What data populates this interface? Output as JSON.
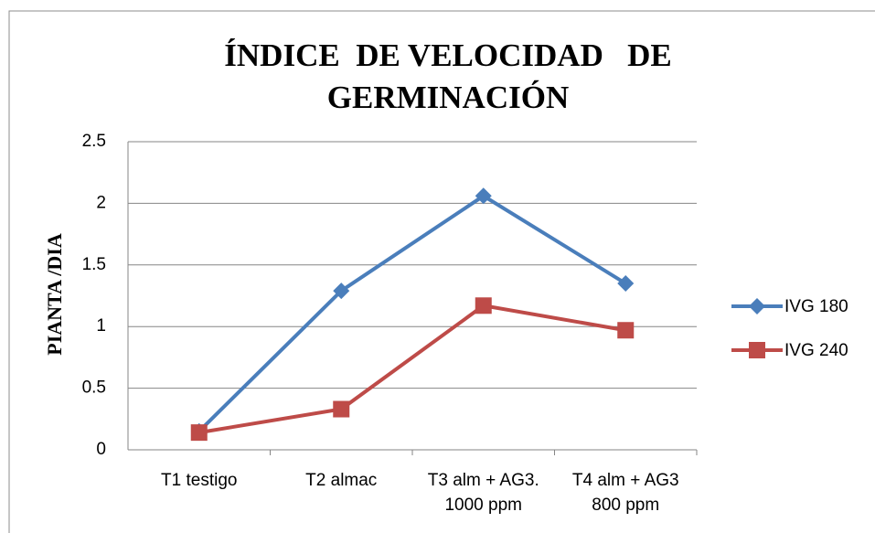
{
  "chart_data": {
    "type": "line",
    "title": "ÍNDICE  DE VELOCIDAD   DE GERMINACIÓN",
    "ylabel": "PIANTA /DIA",
    "categories": [
      "T1 testigo",
      "T2 almac",
      "T3 alm + AG3. 1000 ppm",
      "T4 alm + AG3 800 ppm"
    ],
    "series": [
      {
        "name": "IVG 180",
        "color": "#4a7ebb",
        "marker": "diamond",
        "values": [
          0.15,
          1.29,
          2.06,
          1.35
        ]
      },
      {
        "name": "IVG 240",
        "color": "#be4b48",
        "marker": "square",
        "values": [
          0.14,
          0.33,
          1.17,
          0.97
        ]
      }
    ],
    "ylim": [
      0,
      2.5
    ],
    "yticks": [
      0,
      0.5,
      1,
      1.5,
      2,
      2.5
    ],
    "grid": true,
    "legend": "right"
  }
}
